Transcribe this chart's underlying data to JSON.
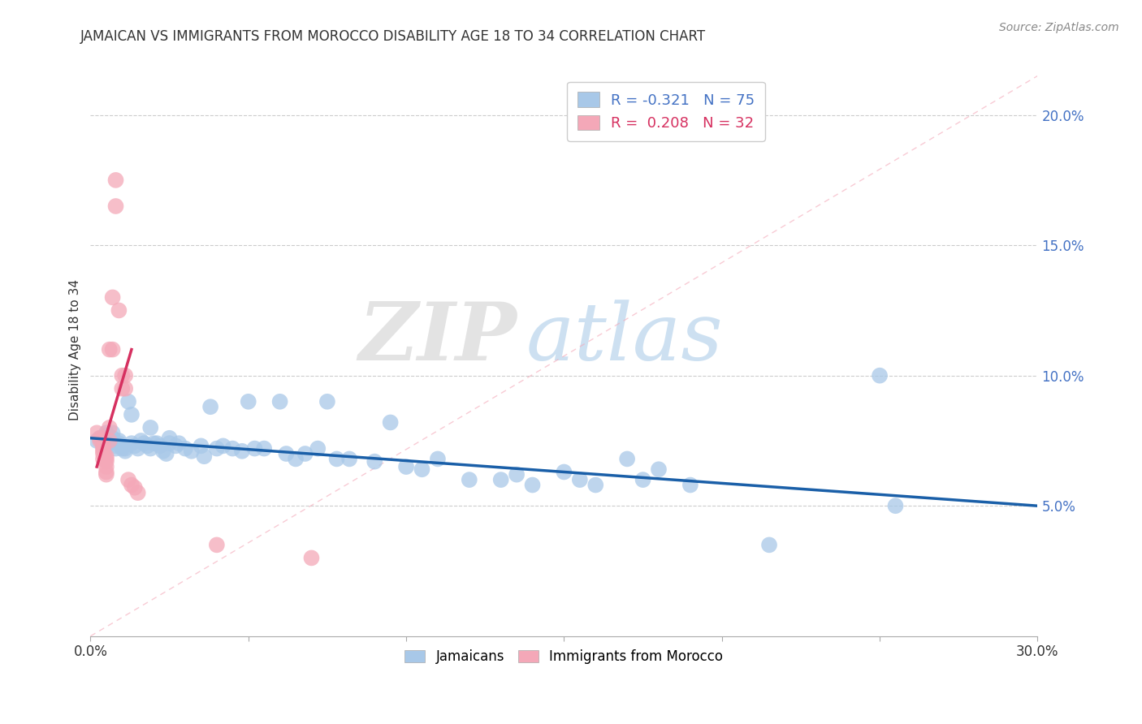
{
  "title": "JAMAICAN VS IMMIGRANTS FROM MOROCCO DISABILITY AGE 18 TO 34 CORRELATION CHART",
  "source": "Source: ZipAtlas.com",
  "ylabel": "Disability Age 18 to 34",
  "right_yticks": [
    "5.0%",
    "10.0%",
    "15.0%",
    "20.0%"
  ],
  "right_ytick_vals": [
    0.05,
    0.1,
    0.15,
    0.2
  ],
  "xlim": [
    0.0,
    0.3
  ],
  "ylim": [
    0.0,
    0.22
  ],
  "legend_blue_label": "R = -0.321   N = 75",
  "legend_pink_label": "R =  0.208   N = 32",
  "legend_blue_color": "#a8c8e8",
  "legend_pink_color": "#f4a8b8",
  "watermark_zip": "ZIP",
  "watermark_atlas": "atlas",
  "blue_scatter": [
    [
      0.002,
      0.075
    ],
    [
      0.003,
      0.076
    ],
    [
      0.004,
      0.074
    ],
    [
      0.005,
      0.078
    ],
    [
      0.005,
      0.077
    ],
    [
      0.006,
      0.075
    ],
    [
      0.006,
      0.074
    ],
    [
      0.007,
      0.078
    ],
    [
      0.007,
      0.076
    ],
    [
      0.008,
      0.073
    ],
    [
      0.008,
      0.072
    ],
    [
      0.009,
      0.075
    ],
    [
      0.009,
      0.074
    ],
    [
      0.01,
      0.073
    ],
    [
      0.01,
      0.072
    ],
    [
      0.011,
      0.072
    ],
    [
      0.011,
      0.071
    ],
    [
      0.012,
      0.09
    ],
    [
      0.013,
      0.085
    ],
    [
      0.013,
      0.074
    ],
    [
      0.014,
      0.073
    ],
    [
      0.015,
      0.072
    ],
    [
      0.016,
      0.075
    ],
    [
      0.017,
      0.074
    ],
    [
      0.018,
      0.073
    ],
    [
      0.019,
      0.08
    ],
    [
      0.019,
      0.072
    ],
    [
      0.02,
      0.074
    ],
    [
      0.021,
      0.074
    ],
    [
      0.022,
      0.073
    ],
    [
      0.023,
      0.071
    ],
    [
      0.024,
      0.07
    ],
    [
      0.025,
      0.076
    ],
    [
      0.025,
      0.074
    ],
    [
      0.027,
      0.073
    ],
    [
      0.028,
      0.074
    ],
    [
      0.03,
      0.072
    ],
    [
      0.032,
      0.071
    ],
    [
      0.035,
      0.073
    ],
    [
      0.036,
      0.069
    ],
    [
      0.038,
      0.088
    ],
    [
      0.04,
      0.072
    ],
    [
      0.042,
      0.073
    ],
    [
      0.045,
      0.072
    ],
    [
      0.048,
      0.071
    ],
    [
      0.05,
      0.09
    ],
    [
      0.052,
      0.072
    ],
    [
      0.055,
      0.072
    ],
    [
      0.06,
      0.09
    ],
    [
      0.062,
      0.07
    ],
    [
      0.065,
      0.068
    ],
    [
      0.068,
      0.07
    ],
    [
      0.072,
      0.072
    ],
    [
      0.075,
      0.09
    ],
    [
      0.078,
      0.068
    ],
    [
      0.082,
      0.068
    ],
    [
      0.09,
      0.067
    ],
    [
      0.095,
      0.082
    ],
    [
      0.1,
      0.065
    ],
    [
      0.105,
      0.064
    ],
    [
      0.11,
      0.068
    ],
    [
      0.12,
      0.06
    ],
    [
      0.13,
      0.06
    ],
    [
      0.135,
      0.062
    ],
    [
      0.14,
      0.058
    ],
    [
      0.15,
      0.063
    ],
    [
      0.155,
      0.06
    ],
    [
      0.16,
      0.058
    ],
    [
      0.17,
      0.068
    ],
    [
      0.175,
      0.06
    ],
    [
      0.18,
      0.064
    ],
    [
      0.19,
      0.058
    ],
    [
      0.215,
      0.035
    ],
    [
      0.25,
      0.1
    ],
    [
      0.255,
      0.05
    ]
  ],
  "pink_scatter": [
    [
      0.002,
      0.078
    ],
    [
      0.003,
      0.076
    ],
    [
      0.003,
      0.075
    ],
    [
      0.004,
      0.073
    ],
    [
      0.004,
      0.072
    ],
    [
      0.004,
      0.071
    ],
    [
      0.004,
      0.07
    ],
    [
      0.004,
      0.068
    ],
    [
      0.005,
      0.069
    ],
    [
      0.005,
      0.068
    ],
    [
      0.005,
      0.067
    ],
    [
      0.005,
      0.065
    ],
    [
      0.005,
      0.063
    ],
    [
      0.005,
      0.062
    ],
    [
      0.006,
      0.11
    ],
    [
      0.006,
      0.08
    ],
    [
      0.006,
      0.075
    ],
    [
      0.007,
      0.13
    ],
    [
      0.007,
      0.11
    ],
    [
      0.008,
      0.175
    ],
    [
      0.008,
      0.165
    ],
    [
      0.009,
      0.125
    ],
    [
      0.01,
      0.1
    ],
    [
      0.01,
      0.095
    ],
    [
      0.011,
      0.1
    ],
    [
      0.011,
      0.095
    ],
    [
      0.012,
      0.06
    ],
    [
      0.013,
      0.058
    ],
    [
      0.014,
      0.057
    ],
    [
      0.015,
      0.055
    ],
    [
      0.04,
      0.035
    ],
    [
      0.07,
      0.03
    ]
  ],
  "blue_line_x": [
    0.0,
    0.3
  ],
  "blue_line_y": [
    0.076,
    0.05
  ],
  "pink_line_x": [
    0.002,
    0.013
  ],
  "pink_line_y": [
    0.065,
    0.11
  ],
  "pink_dash_line_x": [
    0.0,
    0.3
  ],
  "pink_dash_line_y": [
    0.0,
    0.215
  ],
  "gridline_y": [
    0.05,
    0.1,
    0.15,
    0.2
  ],
  "xticks": [
    0.0,
    0.05,
    0.1,
    0.15,
    0.2,
    0.25,
    0.3
  ]
}
